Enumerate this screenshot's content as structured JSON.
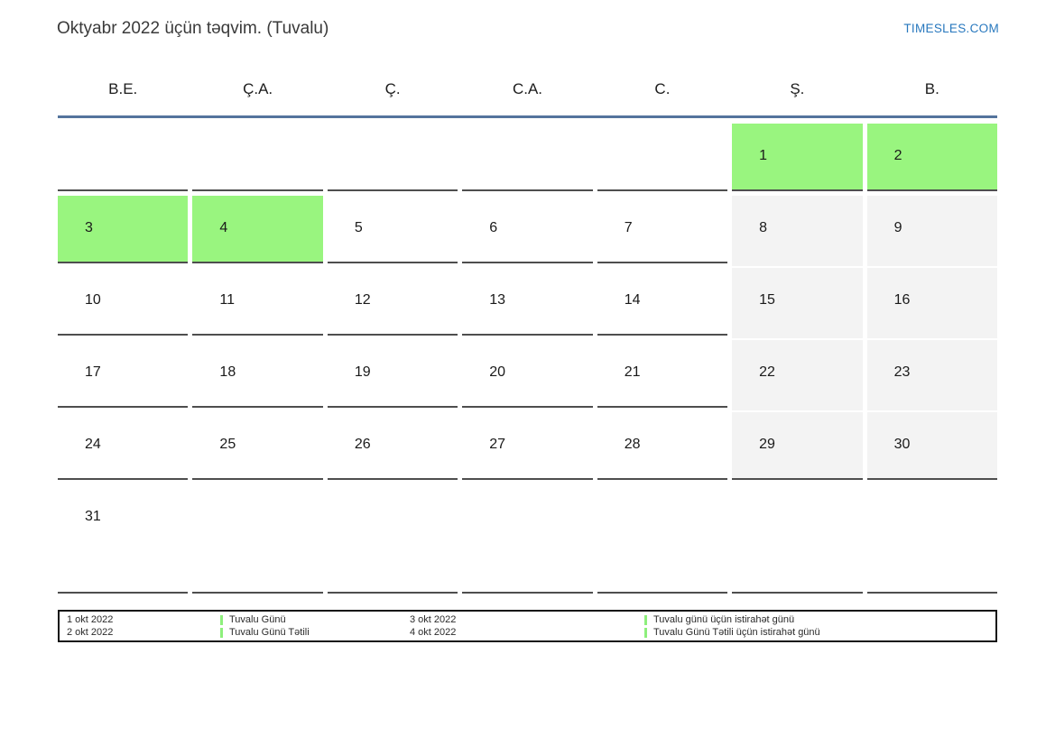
{
  "page": {
    "title": "Oktyabr 2022 üçün təqvim. (Tuvalu)",
    "brand": "TIMESLES.COM"
  },
  "calendar": {
    "weekday_headers": [
      "B.E.",
      "Ç.A.",
      "Ç.",
      "C.A.",
      "C.",
      "Ş.",
      "B."
    ],
    "weeks": [
      [
        {
          "day": "",
          "type": "empty"
        },
        {
          "day": "",
          "type": "empty"
        },
        {
          "day": "",
          "type": "empty"
        },
        {
          "day": "",
          "type": "empty"
        },
        {
          "day": "",
          "type": "empty"
        },
        {
          "day": "1",
          "type": "holiday"
        },
        {
          "day": "2",
          "type": "holiday"
        }
      ],
      [
        {
          "day": "3",
          "type": "holiday"
        },
        {
          "day": "4",
          "type": "holiday"
        },
        {
          "day": "5",
          "type": "workday"
        },
        {
          "day": "6",
          "type": "workday"
        },
        {
          "day": "7",
          "type": "workday"
        },
        {
          "day": "8",
          "type": "weekend"
        },
        {
          "day": "9",
          "type": "weekend"
        }
      ],
      [
        {
          "day": "10",
          "type": "workday"
        },
        {
          "day": "11",
          "type": "workday"
        },
        {
          "day": "12",
          "type": "workday"
        },
        {
          "day": "13",
          "type": "workday"
        },
        {
          "day": "14",
          "type": "workday"
        },
        {
          "day": "15",
          "type": "weekend"
        },
        {
          "day": "16",
          "type": "weekend"
        }
      ],
      [
        {
          "day": "17",
          "type": "workday"
        },
        {
          "day": "18",
          "type": "workday"
        },
        {
          "day": "19",
          "type": "workday"
        },
        {
          "day": "20",
          "type": "workday"
        },
        {
          "day": "21",
          "type": "workday"
        },
        {
          "day": "22",
          "type": "weekend"
        },
        {
          "day": "23",
          "type": "weekend"
        }
      ],
      [
        {
          "day": "24",
          "type": "workday"
        },
        {
          "day": "25",
          "type": "workday"
        },
        {
          "day": "26",
          "type": "workday"
        },
        {
          "day": "27",
          "type": "workday"
        },
        {
          "day": "28",
          "type": "workday"
        },
        {
          "day": "29",
          "type": "weekend"
        },
        {
          "day": "30",
          "type": "weekend"
        }
      ],
      [
        {
          "day": "31",
          "type": "workday"
        },
        {
          "day": "",
          "type": "empty"
        },
        {
          "day": "",
          "type": "empty"
        },
        {
          "day": "",
          "type": "empty"
        },
        {
          "day": "",
          "type": "empty"
        },
        {
          "day": "",
          "type": "empty"
        },
        {
          "day": "",
          "type": "empty"
        }
      ]
    ]
  },
  "legend": {
    "dates_1": [
      "1 okt 2022",
      "2 okt 2022"
    ],
    "events_1": [
      "Tuvalu Günü",
      "Tuvalu Günü Tətili"
    ],
    "dates_2": [
      "3 okt 2022",
      "4 okt 2022"
    ],
    "events_2": [
      "Tuvalu günü üçün istirahət günü",
      "Tuvalu Günü Tətili üçün istirahət günü"
    ]
  },
  "colors": {
    "holiday_green": "#99f57f",
    "weekend_gray": "#f3f3f3",
    "header_rule_blue": "#54749d",
    "brand_blue": "#2878be",
    "cell_border": "#4e4e4e"
  }
}
